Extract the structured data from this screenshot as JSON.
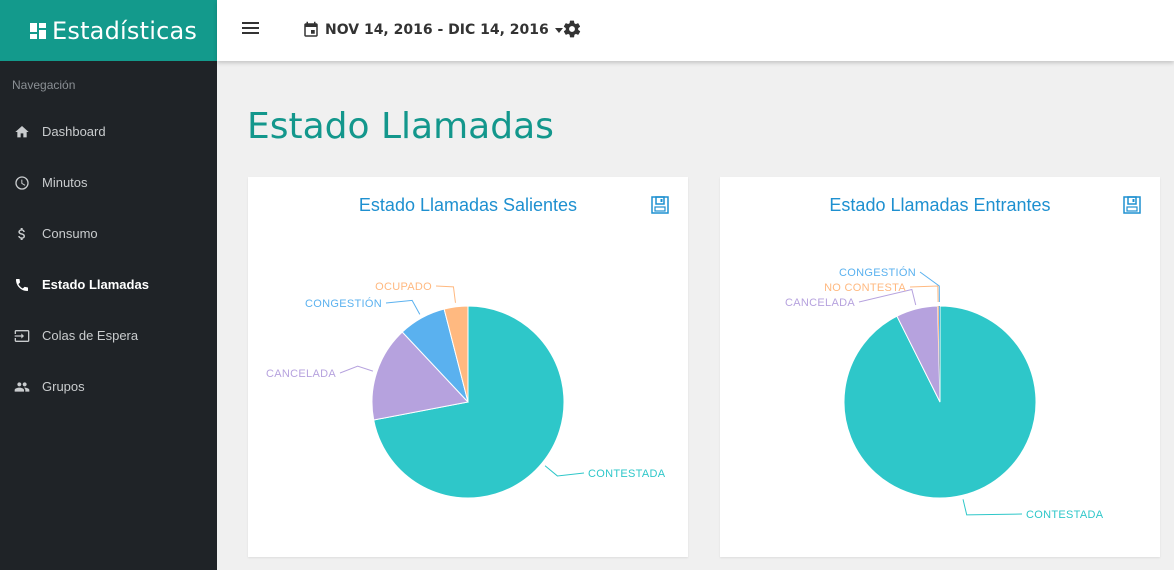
{
  "brand": {
    "title": "Estadísticas",
    "icon": "dashboard-icon"
  },
  "sidebar": {
    "heading": "Navegación",
    "items": [
      {
        "label": "Dashboard",
        "icon": "home-icon",
        "active": false
      },
      {
        "label": "Minutos",
        "icon": "clock-icon",
        "active": false
      },
      {
        "label": "Consumo",
        "icon": "dollar-icon",
        "active": false
      },
      {
        "label": "Estado Llamadas",
        "icon": "phone-icon",
        "active": true
      },
      {
        "label": "Colas de Espera",
        "icon": "queue-icon",
        "active": false
      },
      {
        "label": "Grupos",
        "icon": "group-icon",
        "active": false
      }
    ]
  },
  "topbar": {
    "date_range": "NOV 14, 2016 - DIC 14, 2016"
  },
  "page": {
    "title": "Estado Llamadas"
  },
  "colors": {
    "contestada": "#2ec7c9",
    "cancelada": "#b6a2de",
    "congestion": "#5ab1ef",
    "ocupado": "#ffb980",
    "brand": "#139a8c",
    "title": "#1e90d0"
  },
  "chart_data": [
    {
      "type": "pie",
      "title": "Estado Llamadas Salientes",
      "slices": [
        {
          "name": "CONTESTADA",
          "value": 72,
          "color": "#2ec7c9"
        },
        {
          "name": "CANCELADA",
          "value": 16,
          "color": "#b6a2de"
        },
        {
          "name": "CONGESTIÓN",
          "value": 8,
          "color": "#5ab1ef"
        },
        {
          "name": "OCUPADO",
          "value": 4,
          "color": "#ffb980"
        }
      ]
    },
    {
      "type": "pie",
      "title": "Estado Llamadas Entrantes",
      "slices": [
        {
          "name": "CONTESTADA",
          "value": 92.6,
          "color": "#2ec7c9"
        },
        {
          "name": "CANCELADA",
          "value": 7,
          "color": "#b6a2de"
        },
        {
          "name": "NO CONTESTA",
          "value": 0.2,
          "color": "#ffb980"
        },
        {
          "name": "CONGESTIÓN",
          "value": 0.2,
          "color": "#5ab1ef"
        }
      ]
    }
  ]
}
